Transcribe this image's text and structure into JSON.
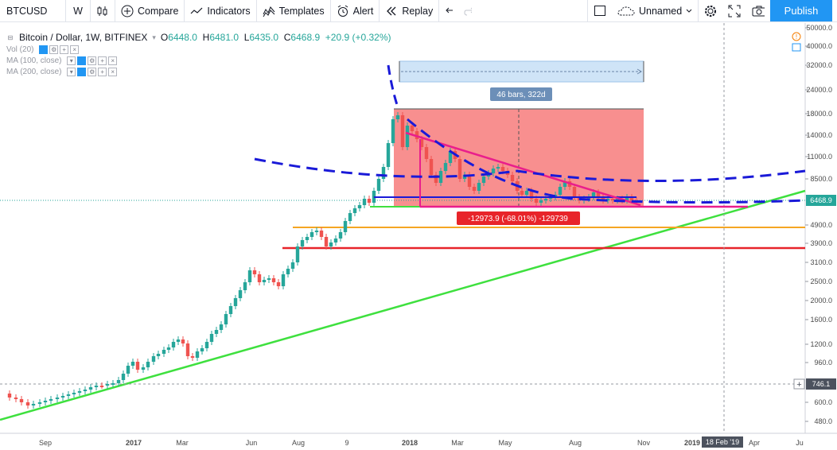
{
  "toolbar": {
    "symbol": "BTCUSD",
    "interval": "W",
    "compare": "Compare",
    "indicators": "Indicators",
    "templates": "Templates",
    "alert": "Alert",
    "replay": "Replay",
    "layout_name": "Unnamed",
    "publish": "Publish"
  },
  "legend": {
    "title": "Bitcoin / Dollar, 1W, BITFINEX",
    "o_key": "O",
    "o": "6448.0",
    "h_key": "H",
    "h": "6481.0",
    "l_key": "L",
    "l": "6435.0",
    "c_key": "C",
    "c": "6468.9",
    "change": "+20.9 (+0.32%)",
    "indicators": [
      "Vol (20)",
      "MA (100, close)",
      "MA (200, close)"
    ]
  },
  "price_axis": {
    "ticks": [
      "50000.0",
      "40000.0",
      "32000.0",
      "24000.0",
      "18000.0",
      "14000.0",
      "11000.0",
      "8500.0",
      "4900.0",
      "3900.0",
      "3100.0",
      "2500.0",
      "2000.0",
      "1600.0",
      "1200.0",
      "960.0",
      "600.0",
      "480.0"
    ],
    "last_price": "6468.9",
    "cursor_price": "746.1"
  },
  "time_axis": {
    "ticks": [
      "Sep",
      "2017",
      "Mar",
      "Jun",
      "Aug",
      "9",
      "2018",
      "Mar",
      "May",
      "Aug",
      "Nov",
      "2019",
      "Apr",
      "Ju"
    ],
    "cursor_date": "18 Feb '19"
  },
  "annotations": {
    "range_label": "46 bars, 322d",
    "drop_label": "-12973.9 (-68.01%) -129739"
  },
  "colors": {
    "up": "#26a69a",
    "down": "#ef5350",
    "accent": "#2196f3",
    "trend_green": "#3ee03e",
    "support_orange": "#f5a623",
    "support_red": "#e8242a",
    "dashed_blue": "#1a1ad8",
    "pink": "#e91e8c",
    "range_fill": "#f77b7b"
  }
}
